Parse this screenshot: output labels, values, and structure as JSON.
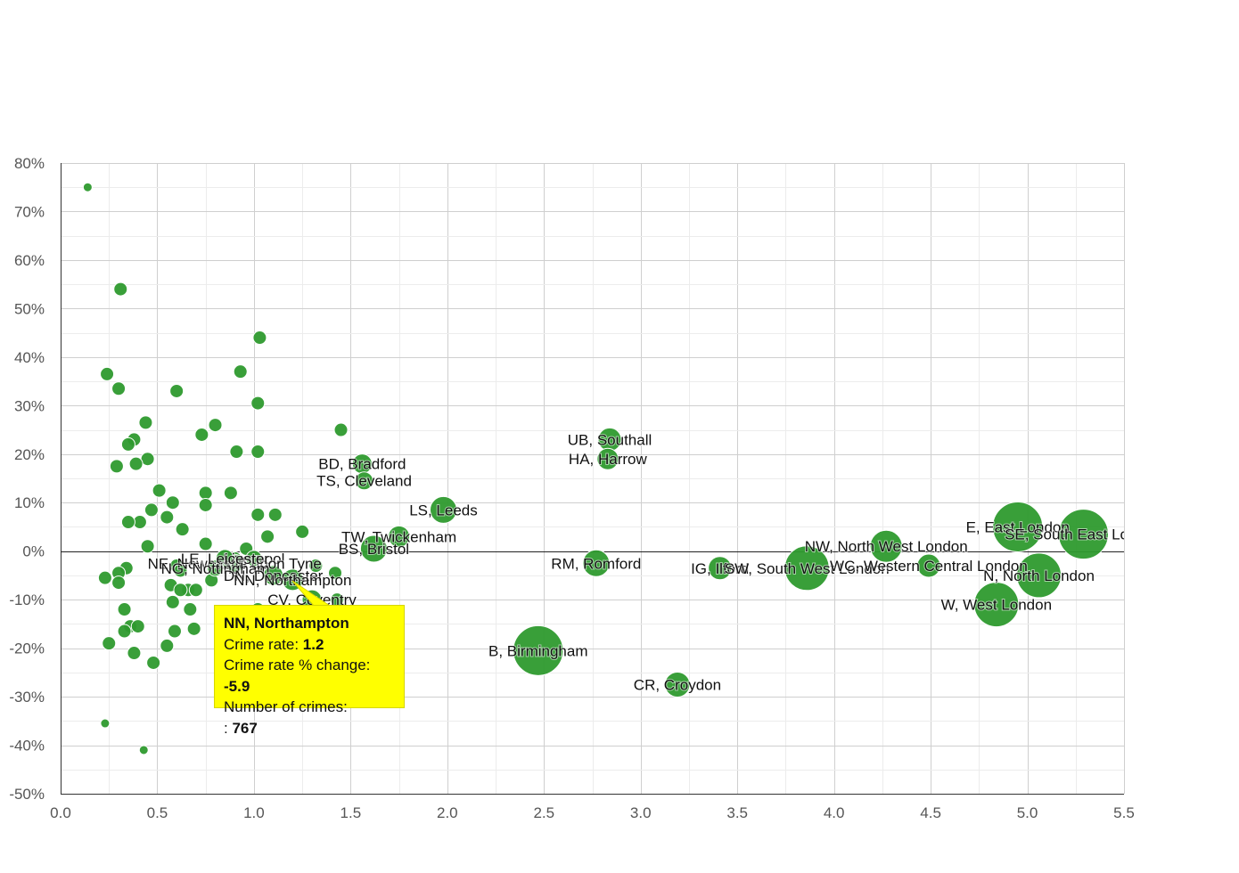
{
  "colors": {
    "bubble": "#2e9a2e",
    "tooltip_bg": "#ffff00",
    "grid": "#cfcfcf"
  },
  "chart_data": {
    "type": "scatter",
    "title": "",
    "xlabel": "",
    "ylabel": "",
    "xlim": [
      0,
      5.5
    ],
    "ylim": [
      -50,
      80
    ],
    "x_ticks": [
      "0.0",
      "0.5",
      "1.0",
      "1.5",
      "2.0",
      "2.5",
      "3.0",
      "3.5",
      "4.0",
      "4.5",
      "5.0",
      "5.5"
    ],
    "y_ticks": [
      "80%",
      "70%",
      "60%",
      "50%",
      "40%",
      "30%",
      "20%",
      "10%",
      "0%",
      "-10%",
      "-20%",
      "-30%",
      "-40%",
      "-50%"
    ],
    "grid": true,
    "labeled_points": [
      {
        "label": "UB, Southall",
        "x": 2.84,
        "y": 23,
        "r": 13
      },
      {
        "label": "HA, Harrow",
        "x": 2.83,
        "y": 19,
        "r": 12
      },
      {
        "label": "BD, Bradford",
        "x": 1.56,
        "y": 18,
        "r": 11
      },
      {
        "label": "TS, Cleveland",
        "x": 1.57,
        "y": 14.5,
        "r": 10
      },
      {
        "label": "LS, Leeds",
        "x": 1.98,
        "y": 8.5,
        "r": 15
      },
      {
        "label": "TW, Twickenham",
        "x": 1.75,
        "y": 3,
        "r": 12
      },
      {
        "label": "BS, Bristol",
        "x": 1.62,
        "y": 0.5,
        "r": 15
      },
      {
        "label": "Liverpool",
        "x": 1.0,
        "y": -1.5,
        "r": 9
      },
      {
        "label": "NE, Newcastle upon Tyne",
        "x": 0.9,
        "y": -2.5,
        "r": 10
      },
      {
        "label": "LE, Leicester",
        "x": 0.85,
        "y": -1.5,
        "r": 10
      },
      {
        "label": "NG, Nottingham",
        "x": 0.8,
        "y": -3.5,
        "r": 9
      },
      {
        "label": "DN, Doncaster",
        "x": 1.1,
        "y": -5,
        "r": 11
      },
      {
        "label": "CV, Coventry",
        "x": 1.3,
        "y": -10,
        "r": 11
      },
      {
        "label": "RM, Romford",
        "x": 2.77,
        "y": -2.5,
        "r": 15
      },
      {
        "label": "IG, Ilford",
        "x": 3.41,
        "y": -3.5,
        "r": 13
      },
      {
        "label": "SW, South West London",
        "x": 3.86,
        "y": -3.5,
        "r": 25
      },
      {
        "label": "NW, North West London",
        "x": 4.27,
        "y": 1,
        "r": 18
      },
      {
        "label": "WC, Western Central London",
        "x": 4.49,
        "y": -3,
        "r": 13
      },
      {
        "label": "E, East London",
        "x": 4.95,
        "y": 5,
        "r": 28
      },
      {
        "label": "SE, South East London",
        "x": 5.29,
        "y": 3.5,
        "r": 28
      },
      {
        "label": "N, North London",
        "x": 5.06,
        "y": -5,
        "r": 25
      },
      {
        "label": "W, West London",
        "x": 4.84,
        "y": -11,
        "r": 25
      },
      {
        "label": "B, Birmingham",
        "x": 2.47,
        "y": -20.5,
        "r": 28
      },
      {
        "label": "CR, Croydon",
        "x": 3.19,
        "y": -27.5,
        "r": 14
      },
      {
        "label": "NN, Northampton",
        "x": 1.2,
        "y": -5.9,
        "r": 12
      }
    ],
    "points": [
      [
        0.14,
        75
      ],
      [
        0.31,
        54
      ],
      [
        1.03,
        44
      ],
      [
        0.24,
        36.5
      ],
      [
        0.93,
        37
      ],
      [
        0.3,
        33.5
      ],
      [
        0.6,
        33
      ],
      [
        1.02,
        30.5
      ],
      [
        0.44,
        26.5
      ],
      [
        0.8,
        26
      ],
      [
        1.45,
        25
      ],
      [
        0.73,
        24
      ],
      [
        0.38,
        23
      ],
      [
        0.35,
        22
      ],
      [
        0.91,
        20.5
      ],
      [
        1.02,
        20.5
      ],
      [
        0.45,
        19
      ],
      [
        0.39,
        18
      ],
      [
        0.29,
        17.5
      ],
      [
        0.51,
        12.5
      ],
      [
        0.75,
        12
      ],
      [
        0.88,
        12
      ],
      [
        0.58,
        10
      ],
      [
        0.75,
        9.5
      ],
      [
        0.47,
        8.5
      ],
      [
        1.02,
        7.5
      ],
      [
        1.11,
        7.5
      ],
      [
        0.55,
        7
      ],
      [
        0.41,
        6
      ],
      [
        0.35,
        6
      ],
      [
        0.63,
        4.5
      ],
      [
        1.25,
        4
      ],
      [
        1.07,
        3
      ],
      [
        0.45,
        1
      ],
      [
        0.75,
        1.5
      ],
      [
        0.96,
        0.5
      ],
      [
        0.34,
        -3.5
      ],
      [
        0.3,
        -4.5
      ],
      [
        0.23,
        -5.5
      ],
      [
        0.3,
        -6.5
      ],
      [
        0.6,
        -3
      ],
      [
        0.62,
        -4
      ],
      [
        0.9,
        -1.5
      ],
      [
        1.32,
        -3
      ],
      [
        1.42,
        -4.5
      ],
      [
        0.57,
        -7
      ],
      [
        0.66,
        -8
      ],
      [
        0.78,
        -6
      ],
      [
        0.62,
        -8
      ],
      [
        0.7,
        -8
      ],
      [
        0.58,
        -10.5
      ],
      [
        1.43,
        -10
      ],
      [
        1.02,
        -12
      ],
      [
        0.67,
        -12
      ],
      [
        0.33,
        -12
      ],
      [
        0.36,
        -15.5
      ],
      [
        0.33,
        -16.5
      ],
      [
        0.4,
        -15.5
      ],
      [
        0.59,
        -16.5
      ],
      [
        0.69,
        -16
      ],
      [
        0.25,
        -19
      ],
      [
        0.55,
        -19.5
      ],
      [
        0.38,
        -21
      ],
      [
        0.48,
        -23
      ],
      [
        0.23,
        -35.5
      ],
      [
        0.43,
        -41
      ]
    ]
  },
  "tooltip": {
    "title": "NN, Northampton",
    "rate_label": "Crime rate: ",
    "rate_value": "1.2",
    "change_label": "Crime rate % change: ",
    "change_value": "-5.9",
    "count_label": "Number of crimes:",
    "count_prefix": ": ",
    "count_value": "767"
  }
}
